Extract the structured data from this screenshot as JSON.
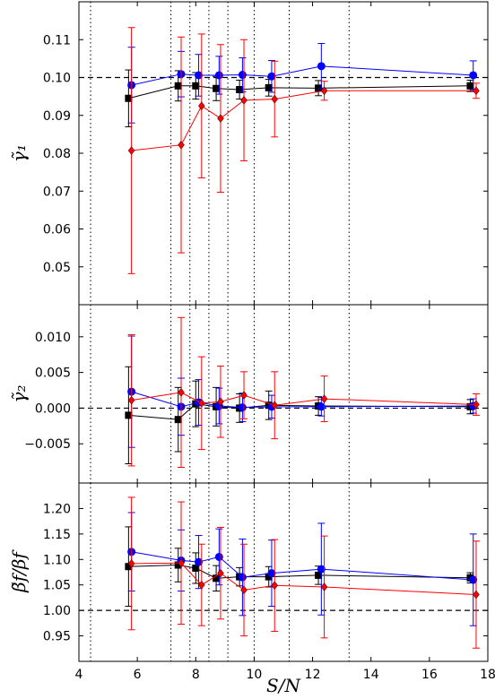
{
  "chart_data": {
    "type": "line",
    "xlabel": "S/N",
    "xlim": [
      4,
      18
    ],
    "xticks": [
      4,
      6,
      8,
      10,
      12,
      14,
      16,
      18
    ],
    "vlines": [
      4.4,
      7.15,
      7.8,
      8.45,
      9.1,
      10.0,
      11.2,
      13.25
    ],
    "colors": {
      "black": "#000000",
      "blue": "#0000ff",
      "red": "#ff0000"
    },
    "panels": [
      {
        "name": "gamma1",
        "ylabel": "γ̃₁",
        "ylim": [
          0.04,
          0.12
        ],
        "yticks": [
          0.05,
          0.06,
          0.07,
          0.08,
          0.09,
          0.1,
          0.11
        ],
        "ytick_labels": [
          "0.05",
          "0.06",
          "0.07",
          "0.08",
          "0.09",
          "0.10",
          "0.11"
        ],
        "reference": 0.1,
        "series": [
          {
            "color": "black",
            "marker": "square",
            "x": [
              5.7,
              7.4,
              8.0,
              8.7,
              9.5,
              10.5,
              12.2,
              17.4
            ],
            "y": [
              0.0945,
              0.0978,
              0.0978,
              0.0971,
              0.0968,
              0.0973,
              0.0972,
              0.0978
            ],
            "err": [
              0.0075,
              0.004,
              0.0035,
              0.0032,
              0.0025,
              0.0022,
              0.002,
              0.0015
            ]
          },
          {
            "color": "blue",
            "marker": "circle",
            "x": [
              5.8,
              7.5,
              8.1,
              8.8,
              9.6,
              10.6,
              12.3,
              17.5
            ],
            "y": [
              0.098,
              0.1009,
              0.1006,
              0.1006,
              0.1007,
              0.1003,
              0.103,
              0.1006
            ],
            "err": [
              0.01,
              0.006,
              0.0055,
              0.005,
              0.0045,
              0.0042,
              0.006,
              0.0038
            ]
          },
          {
            "color": "red",
            "marker": "diamond",
            "x": [
              5.8,
              7.5,
              8.2,
              8.85,
              9.65,
              10.7,
              12.4,
              17.6
            ],
            "y": [
              0.0807,
              0.0822,
              0.0925,
              0.0892,
              0.094,
              0.0943,
              0.0965,
              0.0965
            ],
            "err": [
              0.0325,
              0.0285,
              0.019,
              0.0195,
              0.016,
              0.01,
              0.0025,
              0.002
            ]
          }
        ]
      },
      {
        "name": "gamma2",
        "ylabel": "γ̃₂",
        "ylim": [
          -0.0105,
          0.0145
        ],
        "yticks": [
          -0.005,
          0.0,
          0.005,
          0.01
        ],
        "ytick_labels": [
          "−0.005",
          "0.000",
          "0.005",
          "0.010"
        ],
        "reference": 0.0,
        "series": [
          {
            "color": "black",
            "marker": "square",
            "x": [
              5.7,
              7.4,
              8.0,
              8.7,
              9.5,
              10.5,
              12.2,
              17.4
            ],
            "y": [
              -0.001,
              -0.0016,
              0.0006,
              0.0002,
              0.0,
              0.0004,
              0.0003,
              0.0002
            ],
            "err": [
              0.0068,
              0.0045,
              0.0032,
              0.0027,
              0.002,
              0.002,
              0.0013,
              0.001
            ]
          },
          {
            "color": "blue",
            "marker": "circle",
            "x": [
              5.8,
              7.5,
              8.1,
              8.8,
              9.6,
              10.6,
              12.3,
              17.5
            ],
            "y": [
              0.0023,
              0.0002,
              0.0008,
              0.0003,
              0.0001,
              0.0002,
              0.0002,
              0.0003
            ],
            "err": [
              0.0078,
              0.004,
              0.0032,
              0.0025,
              0.002,
              0.0016,
              0.0013,
              0.001
            ]
          },
          {
            "color": "red",
            "marker": "diamond",
            "x": [
              5.8,
              7.5,
              8.2,
              8.85,
              9.65,
              10.7,
              12.4,
              17.6
            ],
            "y": [
              0.0011,
              0.0022,
              0.0007,
              0.0009,
              0.0018,
              0.0004,
              0.0013,
              0.0005
            ],
            "err": [
              0.0092,
              0.0105,
              0.0065,
              0.005,
              0.0033,
              0.0047,
              0.0032,
              0.0015
            ]
          }
        ]
      },
      {
        "name": "beta",
        "ylabel": "β̃f/βf",
        "ylim": [
          0.9,
          1.25
        ],
        "yticks": [
          0.95,
          1.0,
          1.05,
          1.1,
          1.15,
          1.2
        ],
        "ytick_labels": [
          "0.95",
          "1.00",
          "1.05",
          "1.10",
          "1.15",
          "1.20"
        ],
        "reference": 1.0,
        "series": [
          {
            "color": "black",
            "marker": "square",
            "x": [
              5.7,
              7.4,
              8.0,
              8.7,
              9.5,
              10.5,
              12.2,
              17.4
            ],
            "y": [
              1.086,
              1.089,
              1.083,
              1.063,
              1.066,
              1.066,
              1.069,
              1.064
            ],
            "err": [
              0.078,
              0.033,
              0.03,
              0.025,
              0.018,
              0.02,
              0.018,
              0.01
            ]
          },
          {
            "color": "blue",
            "marker": "circle",
            "x": [
              5.8,
              7.5,
              8.1,
              8.8,
              9.6,
              10.6,
              12.3,
              17.5
            ],
            "y": [
              1.115,
              1.098,
              1.095,
              1.105,
              1.065,
              1.073,
              1.081,
              1.06
            ],
            "err": [
              0.077,
              0.06,
              0.052,
              0.055,
              0.075,
              0.065,
              0.09,
              0.09
            ]
          },
          {
            "color": "red",
            "marker": "diamond",
            "x": [
              5.8,
              7.5,
              8.2,
              8.85,
              9.65,
              10.7,
              12.4,
              17.6
            ],
            "y": [
              1.092,
              1.093,
              1.05,
              1.073,
              1.04,
              1.049,
              1.046,
              1.031
            ],
            "err": [
              0.13,
              0.12,
              0.08,
              0.09,
              0.09,
              0.09,
              0.1,
              0.105
            ]
          }
        ]
      }
    ]
  }
}
